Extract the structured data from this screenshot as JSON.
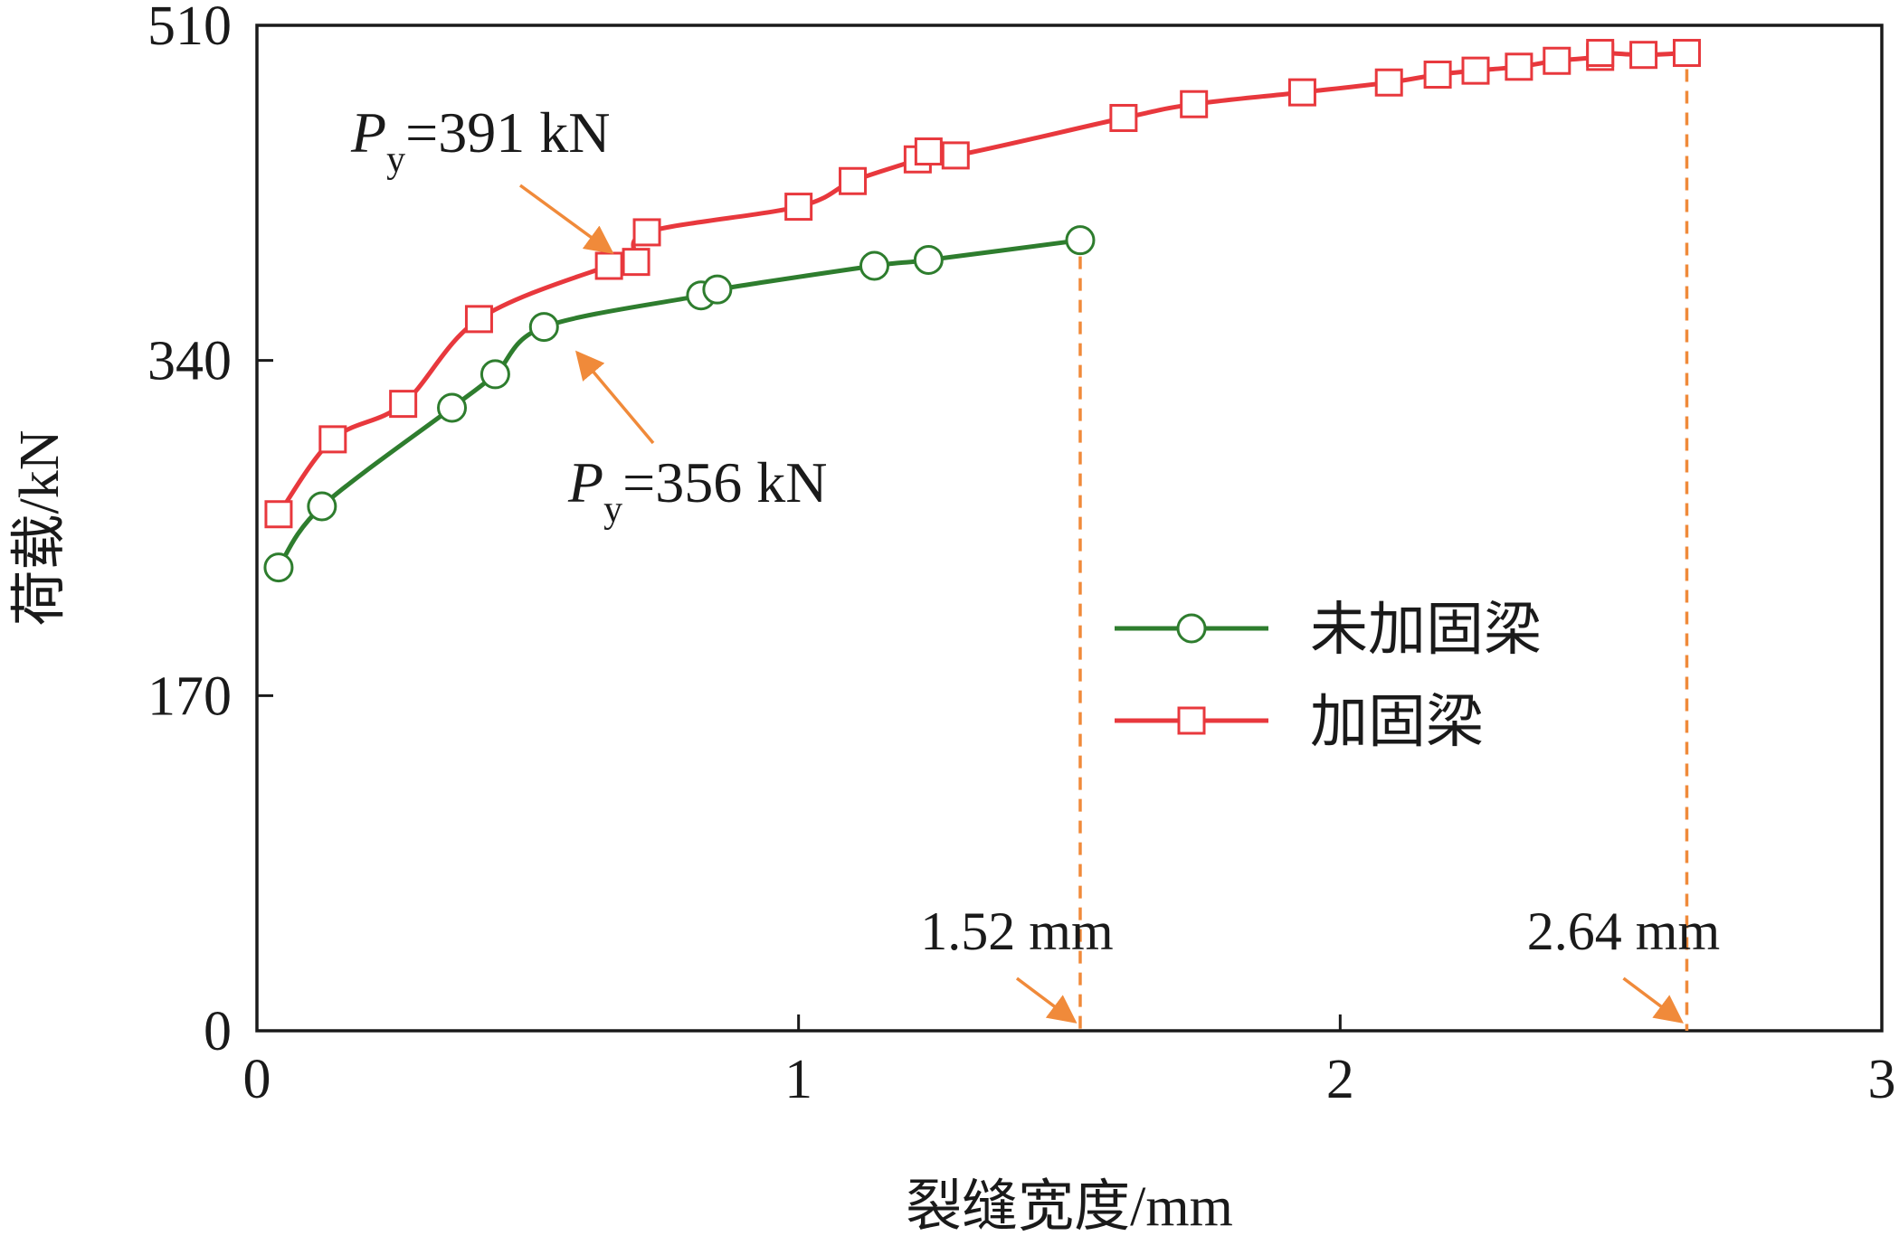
{
  "chart_data": {
    "type": "line",
    "xlabel": "裂缝宽度/mm",
    "ylabel": "荷载/kN",
    "xlim": [
      0,
      3
    ],
    "ylim": [
      0,
      510
    ],
    "xticks": [
      0,
      1,
      2,
      3
    ],
    "yticks": [
      0,
      170,
      340,
      510
    ],
    "grid": false,
    "legend_position": "center-right",
    "series": [
      {
        "name": "未加固梁",
        "color": "#2e7d2e",
        "marker": "circle",
        "x": [
          0.04,
          0.12,
          0.36,
          0.44,
          0.53,
          0.82,
          0.85,
          1.14,
          1.24,
          1.52
        ],
        "y": [
          235,
          266,
          316,
          333,
          357,
          373,
          376,
          388,
          391,
          401
        ]
      },
      {
        "name": "加固梁",
        "color": "#e8383d",
        "marker": "square",
        "x": [
          0.04,
          0.14,
          0.27,
          0.41,
          0.65,
          0.7,
          0.72,
          1.0,
          1.1,
          1.22,
          1.24,
          1.29,
          1.6,
          1.73,
          1.93,
          2.09,
          2.18,
          2.25,
          2.33,
          2.4,
          2.48,
          2.48,
          2.56,
          2.64
        ],
        "y": [
          262,
          300,
          318,
          361,
          388,
          390,
          405,
          418,
          431,
          442,
          446,
          444,
          463,
          470,
          476,
          481,
          485,
          487,
          489,
          492,
          494,
          496,
          495,
          496
        ]
      }
    ],
    "annotations": [
      {
        "label_main": "P",
        "label_sub": "y",
        "label_value": "=391 kN",
        "point": [
          0.65,
          388
        ],
        "color": "#f08a3a"
      },
      {
        "label_main": "P",
        "label_sub": "y",
        "label_value": "=356 kN",
        "point": [
          0.53,
          357
        ],
        "color": "#f08a3a"
      },
      {
        "label": "1.52 mm",
        "x": 1.52,
        "color": "#f08a3a"
      },
      {
        "label": "2.64 mm",
        "x": 2.64,
        "color": "#f08a3a"
      }
    ]
  }
}
